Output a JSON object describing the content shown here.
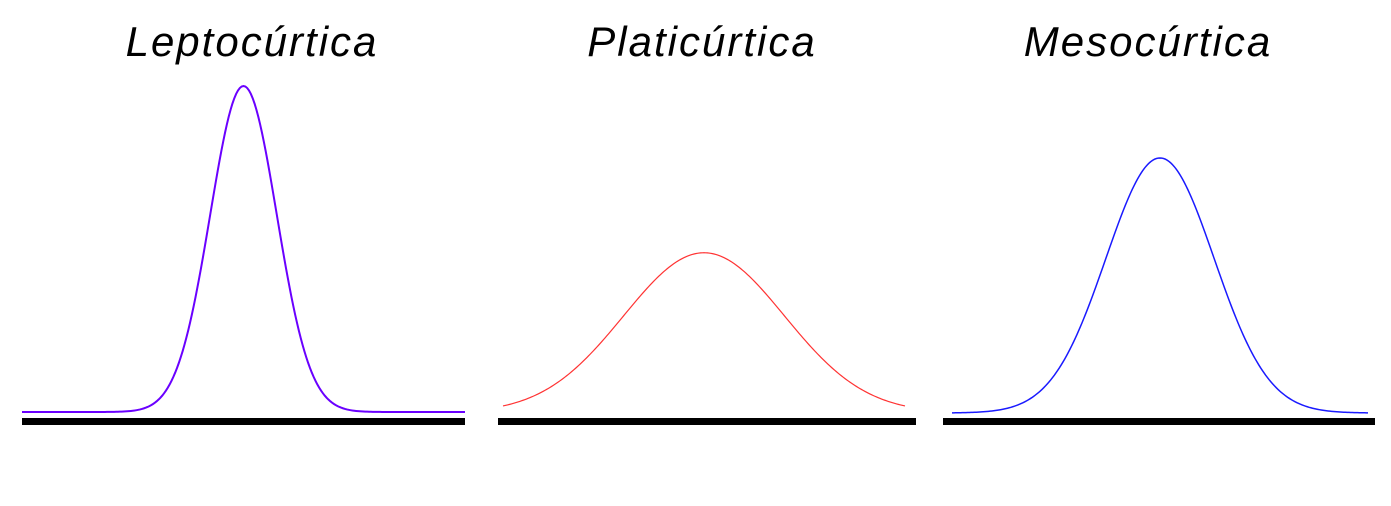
{
  "diagram": {
    "panels": [
      {
        "id": "leptokurtic",
        "title": "Leptocúrtica",
        "curve": {
          "color": "#6a00ff",
          "center": 0.5,
          "spread": 0.075,
          "peak": 1.0,
          "tail_level": 0.0,
          "tail_width": 0.0
        }
      },
      {
        "id": "platykurtic",
        "title": "Platicúrtica",
        "curve": {
          "color": "#ff3333",
          "center": 0.5,
          "spread": 0.2,
          "peak": 0.49,
          "tail_level": 0.0,
          "tail_width": 0.0
        }
      },
      {
        "id": "mesokurtic",
        "title": "Mesocúrtica",
        "curve": {
          "color": "#1a1aff",
          "center": 0.5,
          "spread": 0.13,
          "peak": 0.78,
          "tail_level": 0.0,
          "tail_width": 0.0
        }
      }
    ],
    "baseline_color": "#000000"
  }
}
